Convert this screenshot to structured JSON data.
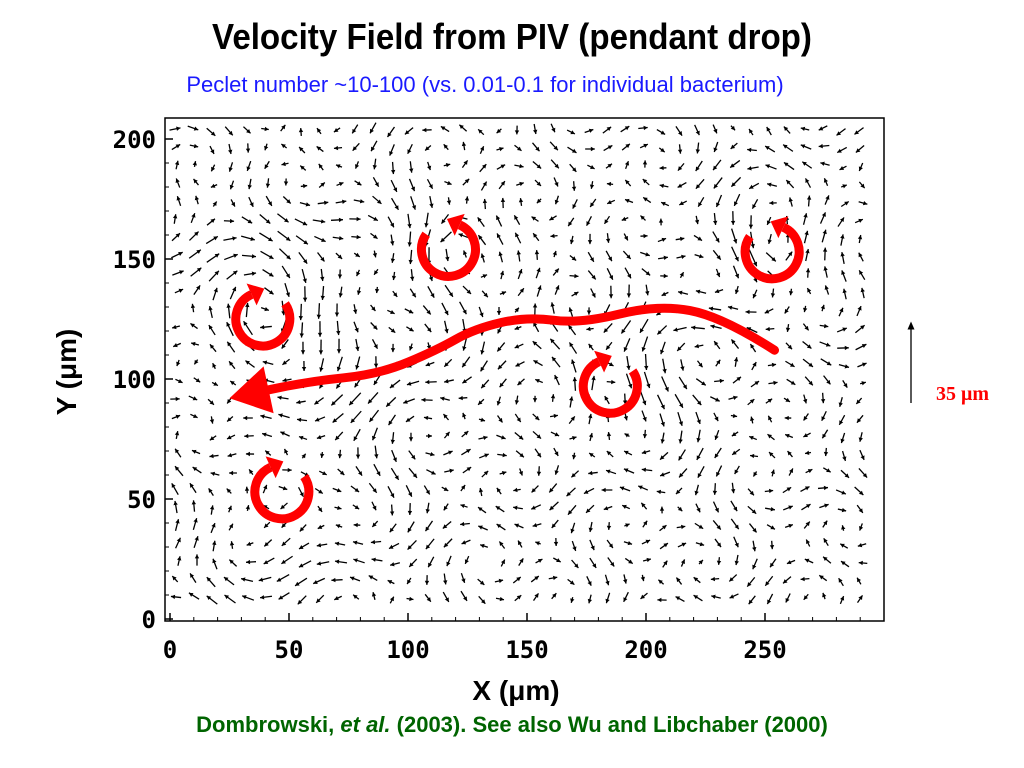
{
  "slide": {
    "title": "Velocity Field from PIV (pendant drop)",
    "subtitle": "Peclet number ~10-100 (vs. 0.01-0.1 for individual bacterium)",
    "citation": {
      "author": "Dombrowski, ",
      "etal": "et al.",
      "rest": " (2003).  See also Wu and Libchaber (2000)"
    },
    "scale_bar_label": "35 μm"
  },
  "colors": {
    "subtitle": "#1a1aff",
    "citation": "#006400",
    "annotation": "#ff0000",
    "field_arrows": "#000000"
  },
  "chart_data": {
    "type": "vector-field",
    "xlabel": "X (μm)",
    "ylabel": "Y (μm)",
    "xlim": [
      0,
      300
    ],
    "ylim": [
      0,
      210
    ],
    "xticks": [
      0,
      50,
      100,
      150,
      200,
      250
    ],
    "yticks": [
      0,
      50,
      100,
      150,
      200
    ],
    "grid": false,
    "scale_bar": {
      "length_um": 35,
      "direction": "up"
    },
    "vortices": [
      {
        "x": 117,
        "y": 154,
        "rotation": "counterclockwise"
      },
      {
        "x": 253,
        "y": 153,
        "rotation": "counterclockwise"
      },
      {
        "x": 39,
        "y": 125,
        "rotation": "clockwise"
      },
      {
        "x": 185,
        "y": 97,
        "rotation": "clockwise"
      },
      {
        "x": 47,
        "y": 53,
        "rotation": "clockwise"
      }
    ],
    "mean_flow_path": {
      "x": [
        254,
        232,
        205,
        172,
        150,
        128,
        112,
        88,
        58,
        25
      ],
      "y": [
        112,
        126,
        131,
        123,
        126,
        121,
        112,
        102,
        99,
        92
      ]
    }
  }
}
